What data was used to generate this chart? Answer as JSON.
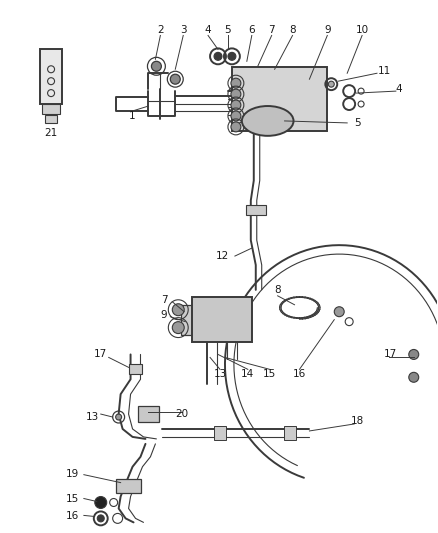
{
  "bg_color": "#ffffff",
  "line_color": "#3a3a3a",
  "label_color": "#1a1a1a",
  "label_fontsize": 7.0,
  "lw_main": 1.4,
  "lw_thin": 0.8,
  "lw_med": 1.1
}
